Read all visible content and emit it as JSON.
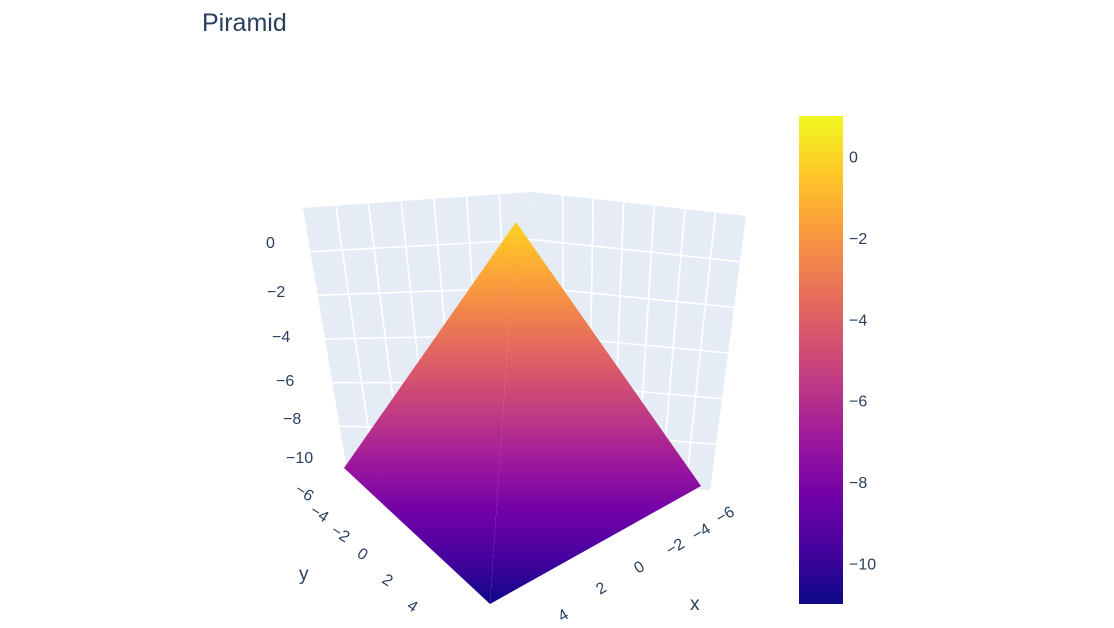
{
  "chart_data": {
    "type": "surface",
    "title": "Piramid",
    "xlabel": "x",
    "ylabel": "y",
    "zlabel": "",
    "x_range": [
      -6,
      6
    ],
    "y_range": [
      -6,
      6
    ],
    "z_range": [
      -11,
      1
    ],
    "x_ticks": [
      "−6",
      "−4",
      "−2",
      "0",
      "2",
      "4"
    ],
    "y_ticks": [
      "−6",
      "−4",
      "−2",
      "0",
      "2",
      "4"
    ],
    "z_ticks": [
      "0",
      "−2",
      "−4",
      "−6",
      "−8",
      "−10"
    ],
    "surface": {
      "description_formula": "z = -max(|x|, |y|)",
      "apex": {
        "x": 0,
        "y": 0,
        "z": 0
      },
      "base_z": -11
    },
    "colorbar": {
      "ticks": [
        "0",
        "−2",
        "−4",
        "−6",
        "−8",
        "−10"
      ],
      "tick_values": [
        0,
        -2,
        -4,
        -6,
        -8,
        -10
      ],
      "cmin": -11,
      "cmax": 1
    },
    "colorscale": [
      "#0d0887",
      "#46039f",
      "#7201a8",
      "#9c179e",
      "#bd3786",
      "#d8576b",
      "#ed7953",
      "#fb9f3a",
      "#fdca26",
      "#f0f921"
    ],
    "background": "#e5ecf6",
    "grid_color": "#ffffff"
  }
}
